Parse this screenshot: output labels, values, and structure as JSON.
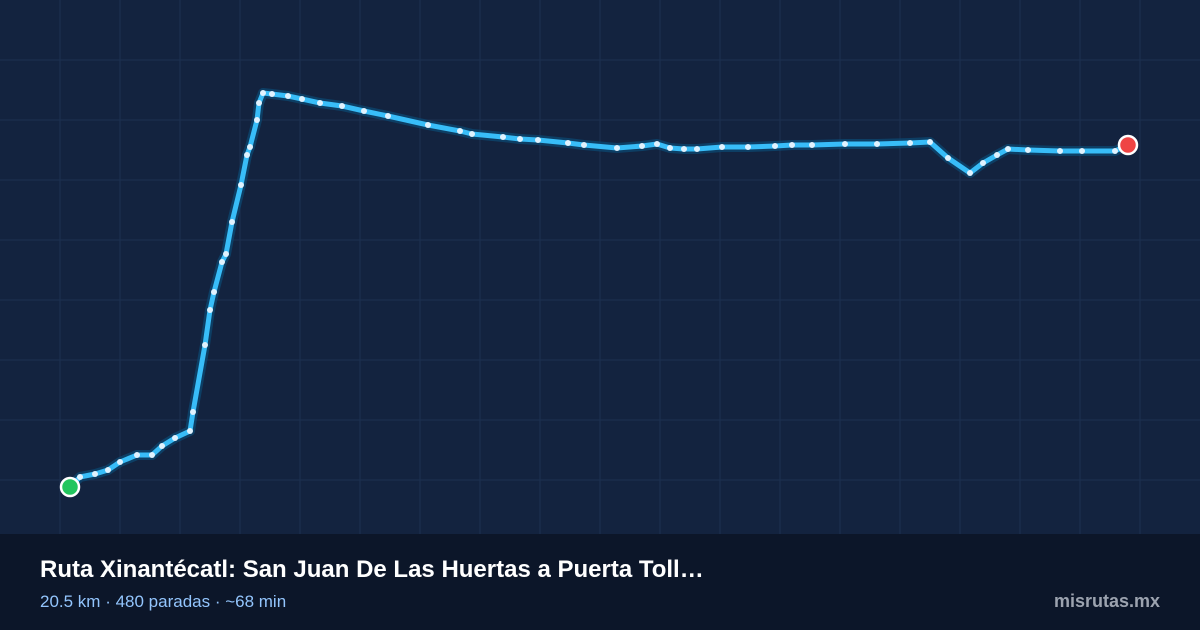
{
  "header": {
    "title": "Ruta Xinantécatl: San Juan De Las Huertas a Puerta Toll…",
    "subtitle": "20.5 km · 480 paradas · ~68 min",
    "brand": "misrutas.mx"
  }
}
